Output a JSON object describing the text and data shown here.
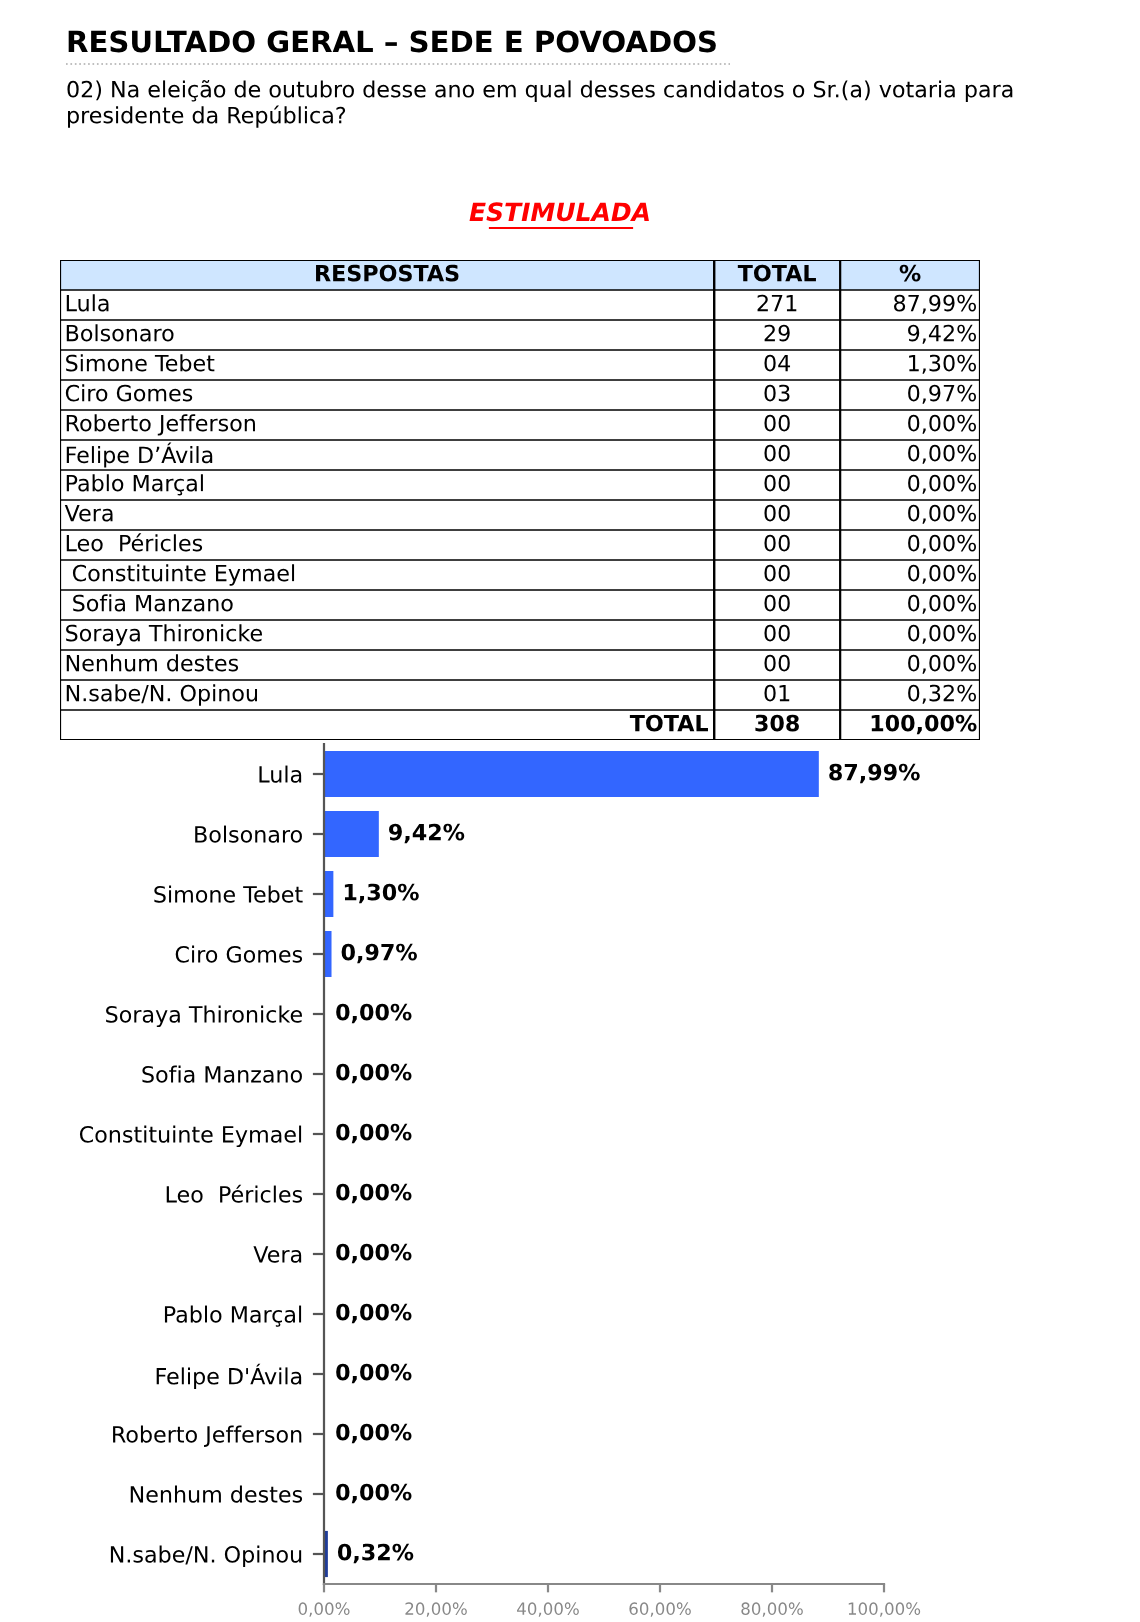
{
  "chart_data": [
    {
      "type": "other",
      "title": "RESULTADO GERAL – SEDE E POVOADOS",
      "subtitle": "02) Na eleição de outubro desse ano em qual desses candidatos o Sr.(a) votaria para presidente da República?",
      "annotations": [
        "ESTIMULADA"
      ],
      "categories": [
        "RESPOSTAS",
        "TOTAL",
        "%"
      ],
      "y_categories": [
        "Lula",
        "Bolsonaro",
        "Simone Tebet",
        "Ciro Gomes",
        "Roberto Jefferson",
        "Felipe D’Ávila",
        "Pablo Marçal",
        "Vera",
        "Leo  Péricles",
        " Constituinte Eymael",
        " Sofia Manzano",
        "Soraya Thironicke",
        "Nenhum destes",
        "N.sabe/N. Opinou",
        "TOTAL"
      ],
      "cell_labels": [
        [
          "271",
          "87,99%"
        ],
        [
          "29",
          "9,42%"
        ],
        [
          "04",
          "1,30%"
        ],
        [
          "03",
          "0,97%"
        ],
        [
          "00",
          "0,00%"
        ],
        [
          "00",
          "0,00%"
        ],
        [
          "00",
          "0,00%"
        ],
        [
          "00",
          "0,00%"
        ],
        [
          "00",
          "0,00%"
        ],
        [
          "00",
          "0,00%"
        ],
        [
          "00",
          "0,00%"
        ],
        [
          "00",
          "0,00%"
        ],
        [
          "00",
          "0,00%"
        ],
        [
          "01",
          "0,32%"
        ],
        [
          "308",
          "100,00%"
        ]
      ]
    },
    {
      "type": "bar",
      "orientation": "horizontal",
      "categories": [
        "Lula",
        "Bolsonaro",
        "Simone Tebet",
        "Ciro Gomes",
        "Soraya Thironicke",
        "Sofia Manzano",
        "Constituinte Eymael",
        "Leo  Péricles",
        "Vera",
        "Pablo Marçal",
        "Felipe D'Ávila",
        "Roberto Jefferson",
        "Nenhum destes",
        "N.sabe/N. Opinou"
      ],
      "values": [
        87.99,
        9.42,
        1.3,
        0.97,
        0,
        0,
        0,
        0,
        0,
        0,
        0,
        0,
        0,
        0.32
      ],
      "value_labels": [
        "87,99%",
        "9,42%",
        "1,30%",
        "0,97%",
        "0,00%",
        "0,00%",
        "0,00%",
        "0,00%",
        "0,00%",
        "0,00%",
        "0,00%",
        "0,00%",
        "0,00%",
        "0,32%"
      ],
      "colors": [
        "#3366ff",
        "#3366ff",
        "#3366ff",
        "#3366ff",
        "#1f3c99",
        "#1f3c99",
        "#1f3c99",
        "#1f3c99",
        "#1f3c99",
        "#1f3c99",
        "#1f3c99",
        "#1f3c99",
        "#1f3c99",
        "#1f3c99"
      ],
      "xlim": [
        0,
        100
      ],
      "xticks": [
        {
          "value": 0,
          "label": "0,00%"
        },
        {
          "value": 20,
          "label": "20,00%"
        },
        {
          "value": 40,
          "label": "40,00%"
        },
        {
          "value": 60,
          "label": "60,00%"
        },
        {
          "value": 80,
          "label": "80,00%"
        },
        {
          "value": 100,
          "label": "100,00%"
        }
      ],
      "grid": false
    }
  ]
}
